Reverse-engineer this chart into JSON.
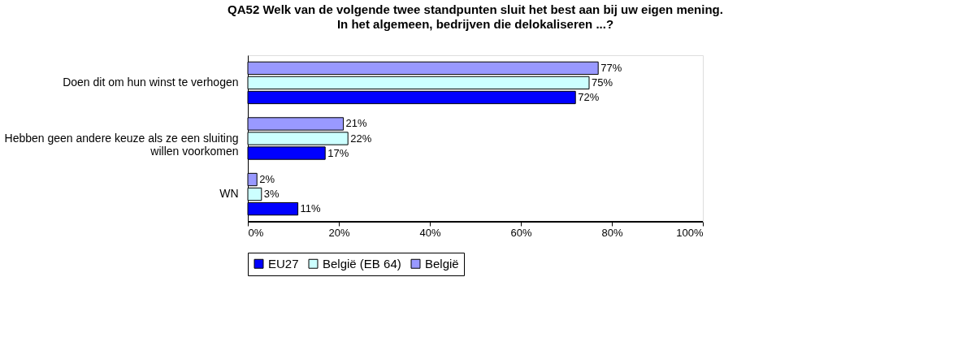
{
  "chart_data": {
    "type": "bar",
    "orientation": "horizontal",
    "title": "QA52 Welk van de volgende twee standpunten sluit het best aan bij uw eigen mening.",
    "subtitle": "In het algemeen, bedrijven die delokaliseren ...?",
    "categories": [
      "Doen dit om hun winst te verhogen",
      "Hebben geen andere keuze als ze een sluiting willen voorkomen",
      "WN"
    ],
    "series": [
      {
        "name": "EU27",
        "color": "#0000ff",
        "values": [
          72,
          17,
          11
        ],
        "value_labels": [
          "72%",
          "17%",
          "11%"
        ]
      },
      {
        "name": "België (EB 64)",
        "color": "#ccffff",
        "values": [
          75,
          22,
          3
        ],
        "value_labels": [
          "75%",
          "22%",
          "3%"
        ]
      },
      {
        "name": "België",
        "color": "#9999ff",
        "values": [
          77,
          21,
          2
        ],
        "value_labels": [
          "77%",
          "21%",
          "2%"
        ]
      }
    ],
    "xlim": [
      0,
      100
    ],
    "xticks": [
      {
        "value": 0,
        "label": "0%"
      },
      {
        "value": 20,
        "label": "20%"
      },
      {
        "value": 40,
        "label": "40%"
      },
      {
        "value": 60,
        "label": "60%"
      },
      {
        "value": 80,
        "label": "80%"
      },
      {
        "value": 100,
        "label": "100%"
      }
    ],
    "grid": false,
    "legend": "bottom"
  }
}
